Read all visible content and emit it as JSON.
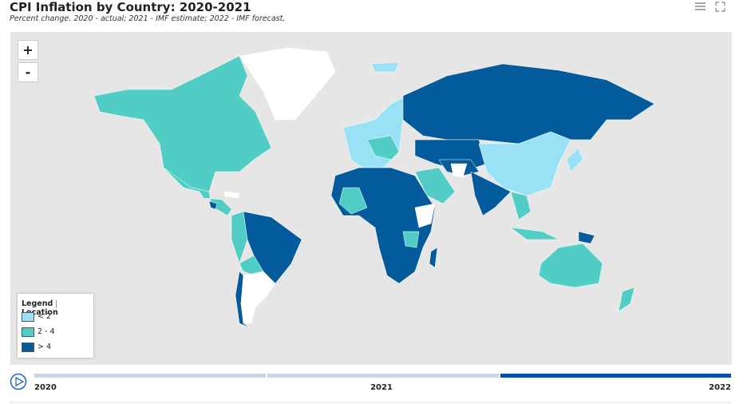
{
  "header": {
    "title": "CPI Inflation by Country: 2020-2021",
    "subtitle": "Percent change. 2020 - actual; 2021 - IMF estimate; 2022 - IMF forecast."
  },
  "zoom": {
    "in": "+",
    "out": "-"
  },
  "legend": {
    "title": "Legend",
    "tab": "Location",
    "items": [
      {
        "label": "< 2",
        "color": "#99e1f4"
      },
      {
        "label": "2 - 4",
        "color": "#52cdc6"
      },
      {
        "label": "> 4",
        "color": "#045b9c"
      }
    ]
  },
  "timeline": {
    "labels": [
      "2020",
      "2021",
      "2022"
    ]
  }
}
